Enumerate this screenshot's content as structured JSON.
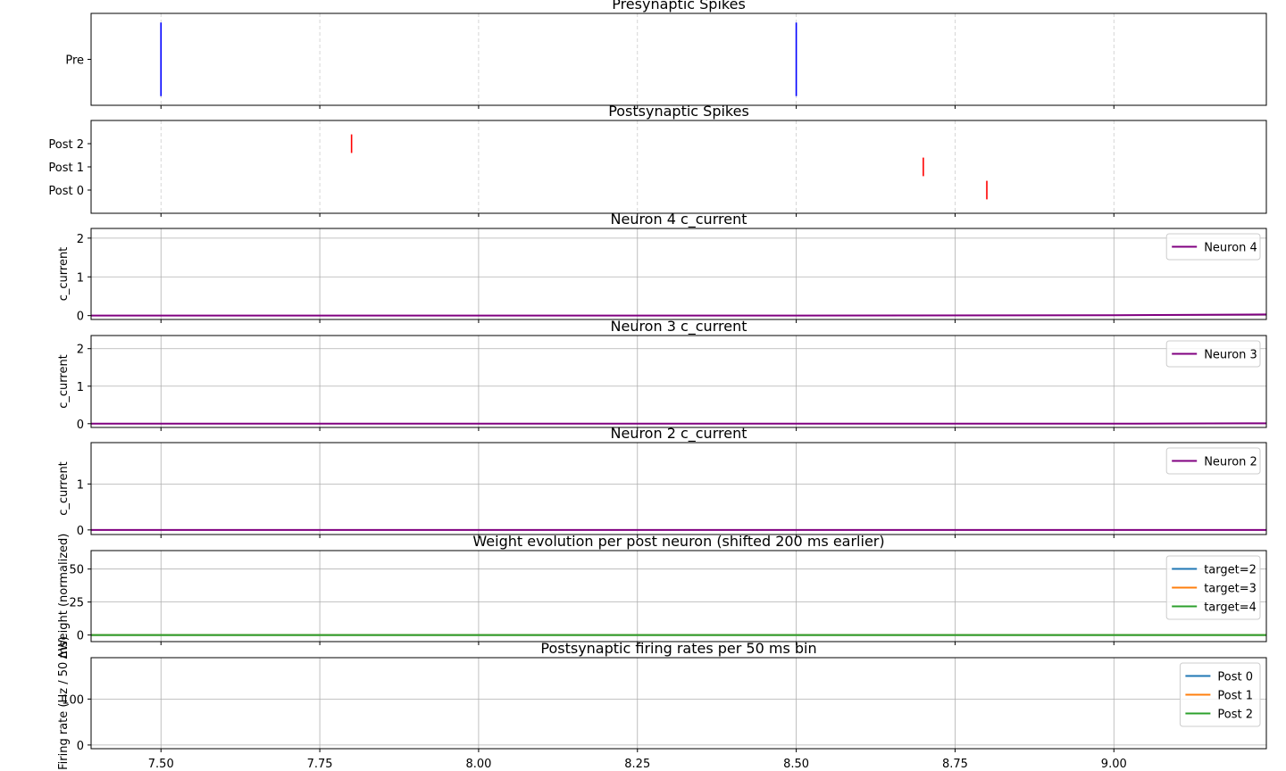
{
  "x_axis": {
    "xlim": [
      7.39,
      9.24
    ],
    "ticks": [
      7.5,
      7.75,
      8.0,
      8.25,
      8.5,
      8.75,
      9.0
    ],
    "tick_labels": [
      "7.50",
      "7.75",
      "8.00",
      "8.25",
      "8.50",
      "8.75",
      "9.00"
    ]
  },
  "chart_data": [
    {
      "id": "pre",
      "type": "scatter",
      "title": "Presynaptic Spikes",
      "ylabel": "",
      "grid": "x-dashed",
      "ylim": [
        -0.5,
        0.5
      ],
      "yticks": [
        0
      ],
      "ytick_labels": [
        "Pre"
      ],
      "raster": [
        {
          "row": 0,
          "times": [
            7.5,
            8.5
          ],
          "color": "#0000ff"
        }
      ],
      "series": []
    },
    {
      "id": "post",
      "type": "scatter",
      "title": "Postsynaptic Spikes",
      "ylabel": "",
      "grid": "x-dashed",
      "ylim": [
        -1,
        3
      ],
      "yticks": [
        0,
        1,
        2
      ],
      "ytick_labels": [
        "Post 0",
        "Post 1",
        "Post 2"
      ],
      "raster": [
        {
          "row": 2,
          "times": [
            7.8
          ],
          "color": "#ff0000"
        },
        {
          "row": 1,
          "times": [
            8.7
          ],
          "color": "#ff0000"
        },
        {
          "row": 0,
          "times": [
            8.8
          ],
          "color": "#ff0000"
        }
      ],
      "series": []
    },
    {
      "id": "n4",
      "type": "line",
      "title": "Neuron 4 c_current",
      "ylabel": "c_current",
      "grid": "both",
      "ylim": [
        -0.1,
        2.25
      ],
      "yticks": [
        0,
        1,
        2
      ],
      "ytick_labels": [
        "0",
        "1",
        "2"
      ],
      "legend": "top-right",
      "series": [
        {
          "name": "Neuron 4",
          "color": "#800080",
          "x": [
            7.39,
            8.5,
            9.0,
            9.24
          ],
          "y": [
            0,
            0.0,
            0.01,
            0.03
          ]
        }
      ]
    },
    {
      "id": "n3",
      "type": "line",
      "title": "Neuron 3 c_current",
      "ylabel": "c_current",
      "grid": "both",
      "ylim": [
        -0.1,
        2.35
      ],
      "yticks": [
        0,
        1,
        2
      ],
      "ytick_labels": [
        "0",
        "1",
        "2"
      ],
      "legend": "top-right",
      "series": [
        {
          "name": "Neuron 3",
          "color": "#800080",
          "x": [
            7.39,
            9.0,
            9.24
          ],
          "y": [
            0,
            0,
            0.01
          ]
        }
      ]
    },
    {
      "id": "n2",
      "type": "line",
      "title": "Neuron 2 c_current",
      "ylabel": "c_current",
      "grid": "both",
      "ylim": [
        -0.1,
        1.9
      ],
      "yticks": [
        0,
        1
      ],
      "ytick_labels": [
        "0",
        "1"
      ],
      "legend": "top-right",
      "series": [
        {
          "name": "Neuron 2",
          "color": "#800080",
          "x": [
            7.39,
            9.24
          ],
          "y": [
            0,
            0
          ]
        }
      ]
    },
    {
      "id": "weights",
      "type": "line",
      "title": "Weight evolution per post neuron (shifted 200 ms earlier)",
      "ylabel": "ΔWeight (normalized)",
      "grid": "both",
      "ylim": [
        -5,
        64
      ],
      "yticks": [
        0,
        25,
        50
      ],
      "ytick_labels": [
        "0",
        "25",
        "50"
      ],
      "legend": "top-right",
      "series": [
        {
          "name": "target=2",
          "color": "#1f77b4",
          "x": [
            7.39,
            9.24
          ],
          "y": [
            0,
            0
          ]
        },
        {
          "name": "target=3",
          "color": "#ff7f0e",
          "x": [
            7.39,
            9.24
          ],
          "y": [
            0,
            0
          ]
        },
        {
          "name": "target=4",
          "color": "#2ca02c",
          "x": [
            7.39,
            9.24
          ],
          "y": [
            0,
            0
          ]
        }
      ]
    },
    {
      "id": "rates",
      "type": "line",
      "title": "Postsynaptic firing rates per 50 ms bin",
      "ylabel": "Firing rate (Hz / 50 ms)",
      "grid": "both",
      "ylim": [
        -8,
        190
      ],
      "yticks": [
        0,
        100
      ],
      "ytick_labels": [
        "0",
        "100"
      ],
      "legend": "top-right",
      "series": [
        {
          "name": "Post 0",
          "color": "#1f77b4",
          "x": [],
          "y": []
        },
        {
          "name": "Post 1",
          "color": "#ff7f0e",
          "x": [],
          "y": []
        },
        {
          "name": "Post 2",
          "color": "#2ca02c",
          "x": [],
          "y": []
        }
      ]
    }
  ]
}
